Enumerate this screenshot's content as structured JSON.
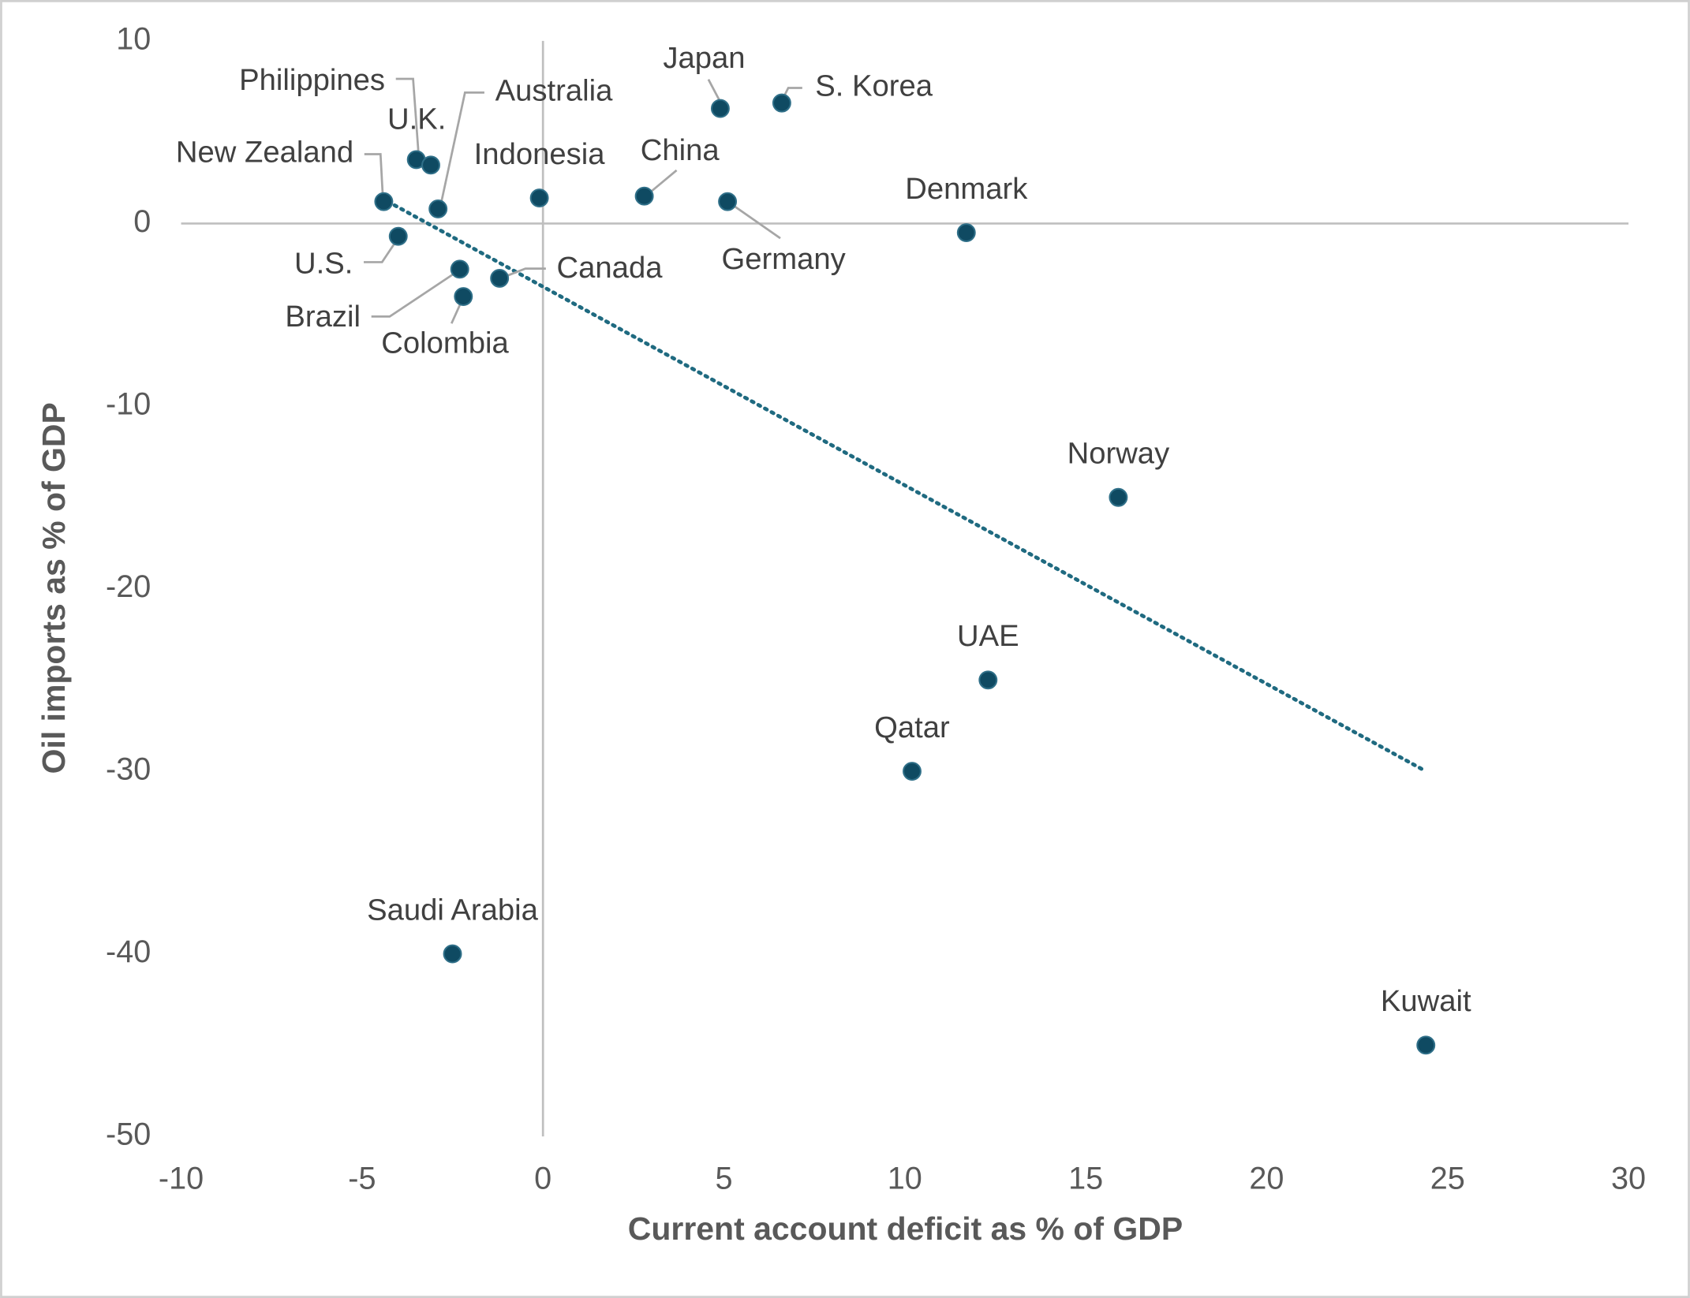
{
  "chart_data": {
    "type": "scatter",
    "x_label": "Current account deficit as % of GDP",
    "y_label": "Oil imports as % of GDP",
    "xlim": [
      -10,
      30
    ],
    "xticks": [
      -10,
      -5,
      0,
      5,
      10,
      15,
      20,
      25,
      30
    ],
    "ylim": [
      -50,
      10
    ],
    "yticks": [
      -50,
      -40,
      -30,
      -20,
      -10,
      0,
      10
    ],
    "color": "#0f4a62",
    "trendline": {
      "color": "#1f6a80",
      "x": [
        -4.1,
        24.4
      ],
      "y": [
        1.0,
        -30.0
      ]
    },
    "points": [
      {
        "label": "Japan",
        "x": 4.9,
        "y": 6.3
      },
      {
        "label": "S. Korea",
        "x": 6.6,
        "y": 6.6
      },
      {
        "label": "Philippines",
        "x": -3.5,
        "y": 3.5
      },
      {
        "label": "U.K.",
        "x": -3.1,
        "y": 3.2
      },
      {
        "label": "Australia",
        "x": -2.9,
        "y": 0.8
      },
      {
        "label": "New Zealand",
        "x": -4.4,
        "y": 1.2
      },
      {
        "label": "Indonesia",
        "x": -0.1,
        "y": 1.4
      },
      {
        "label": "China",
        "x": 2.8,
        "y": 1.5
      },
      {
        "label": "Germany",
        "x": 5.1,
        "y": 1.2
      },
      {
        "label": "Denmark",
        "x": 11.7,
        "y": -0.5
      },
      {
        "label": "U.S.",
        "x": -4.0,
        "y": -0.7
      },
      {
        "label": "Brazil",
        "x": -2.3,
        "y": -2.5
      },
      {
        "label": "Colombia",
        "x": -2.2,
        "y": -4.0
      },
      {
        "label": "Canada",
        "x": -1.2,
        "y": -3.0
      },
      {
        "label": "Norway",
        "x": 15.9,
        "y": -15.0
      },
      {
        "label": "UAE",
        "x": 12.3,
        "y": -25.0
      },
      {
        "label": "Qatar",
        "x": 10.2,
        "y": -30.0
      },
      {
        "label": "Saudi Arabia",
        "x": -2.5,
        "y": -40.0
      },
      {
        "label": "Kuwait",
        "x": 24.4,
        "y": -45.0
      }
    ]
  }
}
